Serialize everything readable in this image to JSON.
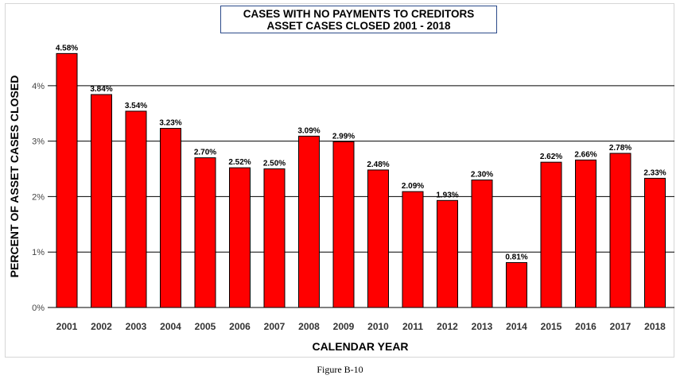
{
  "caption": "Figure B-10",
  "chart_data": {
    "type": "bar",
    "title": "CASES WITH NO PAYMENTS TO CREDITORS",
    "subtitle": "ASSET CASES CLOSED 2001 - 2018",
    "xlabel": "CALENDAR YEAR",
    "ylabel": "PERCENT OF ASSET CASES CLOSED",
    "ylim": [
      0,
      4.8
    ],
    "yticks": [
      0,
      1,
      2,
      3,
      4
    ],
    "ytick_labels": [
      "0%",
      "1%",
      "2%",
      "3%",
      "4%"
    ],
    "grid": true,
    "bar_color": "#ff0000",
    "categories": [
      "2001",
      "2002",
      "2003",
      "2004",
      "2005",
      "2006",
      "2007",
      "2008",
      "2009",
      "2010",
      "2011",
      "2012",
      "2013",
      "2014",
      "2015",
      "2016",
      "2017",
      "2018"
    ],
    "values": [
      4.58,
      3.84,
      3.54,
      3.23,
      2.7,
      2.52,
      2.5,
      3.09,
      2.99,
      2.48,
      2.09,
      1.93,
      2.3,
      0.81,
      2.62,
      2.66,
      2.78,
      2.33
    ],
    "data_labels": [
      "4.58%",
      "3.84%",
      "3.54%",
      "3.23%",
      "2.70%",
      "2.52%",
      "2.50%",
      "3.09%",
      "2.99%",
      "2.48%",
      "2.09%",
      "1.93%",
      "2.30%",
      "0.81%",
      "2.62%",
      "2.66%",
      "2.78%",
      "2.33%"
    ]
  }
}
